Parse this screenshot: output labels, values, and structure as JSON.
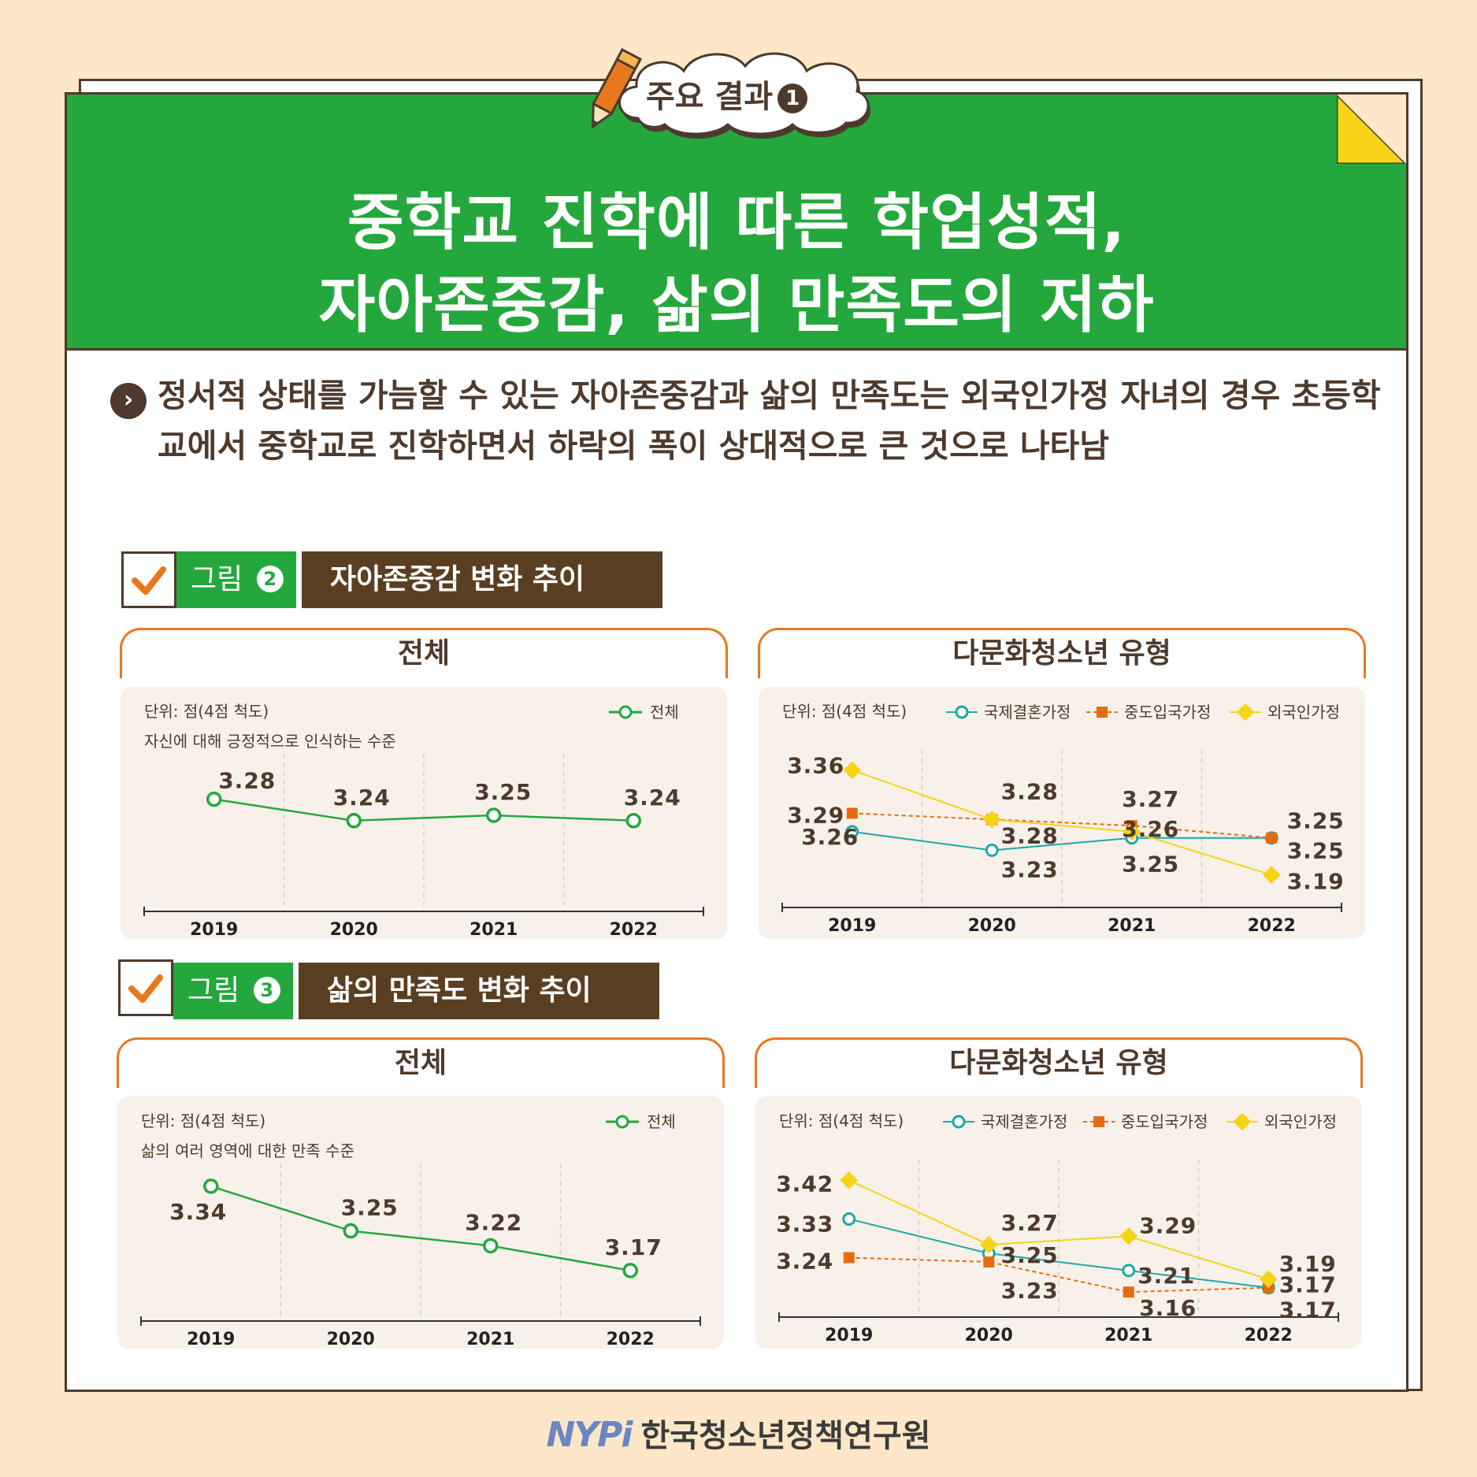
{
  "badge": {
    "label": "주요 결과",
    "number": "1"
  },
  "title": {
    "line1": "중학교 진학에 따른 학업성적,",
    "line2": "자아존중감, 삶의 만족도의 저하"
  },
  "summary": {
    "text": "정서적 상태를 가늠할 수 있는 자아존중감과 삶의 만족도는 외국인가정 자녀의 경우 초등학교에서 중학교로 진학하면서 하락의 폭이 상대적으로 큰 것으로 나타남"
  },
  "figures": [
    {
      "label": "그림",
      "number": "2",
      "title": "자아존중감 변화 추이"
    },
    {
      "label": "그림",
      "number": "3",
      "title": "삶의 만족도 변화 추이"
    }
  ],
  "colors": {
    "green": "#24A73C",
    "brown": "#4E3A2C",
    "orange": "#E8781E",
    "teal": "#1AA9A9",
    "yellow": "#F7D317",
    "series_orange": "#E86A10"
  },
  "footer": {
    "logo": "NYPi",
    "org": "한국청소년정책연구원"
  },
  "chart_data": [
    {
      "type": "line",
      "panel_title": "전체",
      "unit": "단위: 점(4점 척도)",
      "note": "자신에 대해 긍정적으로 인식하는 수준",
      "categories": [
        "2019",
        "2020",
        "2021",
        "2022"
      ],
      "series": [
        {
          "name": "전체",
          "values": [
            3.28,
            3.24,
            3.25,
            3.24
          ],
          "labels": [
            "3.28",
            "3.24",
            "3.25",
            "3.24"
          ]
        }
      ],
      "ylim": [
        3.1,
        3.35
      ]
    },
    {
      "type": "line",
      "panel_title": "다문화청소년 유형",
      "unit": "단위: 점(4점 척도)",
      "categories": [
        "2019",
        "2020",
        "2021",
        "2022"
      ],
      "series": [
        {
          "name": "국제결혼가정",
          "values": [
            3.26,
            3.23,
            3.25,
            3.25
          ],
          "labels": [
            "3.26",
            "3.23",
            "3.25",
            "3.25"
          ]
        },
        {
          "name": "중도입국가정",
          "values": [
            3.29,
            3.28,
            3.27,
            3.25
          ],
          "labels": [
            "3.29",
            "3.28",
            "3.27",
            "3.25"
          ]
        },
        {
          "name": "외국인가정",
          "values": [
            3.36,
            3.28,
            3.26,
            3.19
          ],
          "labels": [
            "3.36",
            "3.28",
            "3.26",
            "3.19"
          ]
        }
      ],
      "ylim": [
        3.15,
        3.38
      ]
    },
    {
      "type": "line",
      "panel_title": "전체",
      "unit": "단위: 점(4점 척도)",
      "note": "삶의 여러 영역에 대한 만족 수준",
      "categories": [
        "2019",
        "2020",
        "2021",
        "2022"
      ],
      "series": [
        {
          "name": "전체",
          "values": [
            3.34,
            3.25,
            3.22,
            3.17
          ],
          "labels": [
            "3.34",
            "3.25",
            "3.22",
            "3.17"
          ]
        }
      ],
      "ylim": [
        3.1,
        3.37
      ]
    },
    {
      "type": "line",
      "panel_title": "다문화청소년 유형",
      "unit": "단위: 점(4점 척도)",
      "categories": [
        "2019",
        "2020",
        "2021",
        "2022"
      ],
      "series": [
        {
          "name": "국제결혼가정",
          "values": [
            3.33,
            3.25,
            3.21,
            3.17
          ],
          "labels": [
            "3.33",
            "3.25",
            "3.21",
            "3.17"
          ]
        },
        {
          "name": "중도입국가정",
          "values": [
            3.24,
            3.23,
            3.16,
            3.17
          ],
          "labels": [
            "3.24",
            "3.23",
            "3.16",
            "3.17"
          ]
        },
        {
          "name": "외국인가정",
          "values": [
            3.42,
            3.27,
            3.29,
            3.19
          ],
          "labels": [
            "3.42",
            "3.27",
            "3.29",
            "3.19"
          ]
        }
      ],
      "ylim": [
        3.12,
        3.45
      ]
    }
  ]
}
